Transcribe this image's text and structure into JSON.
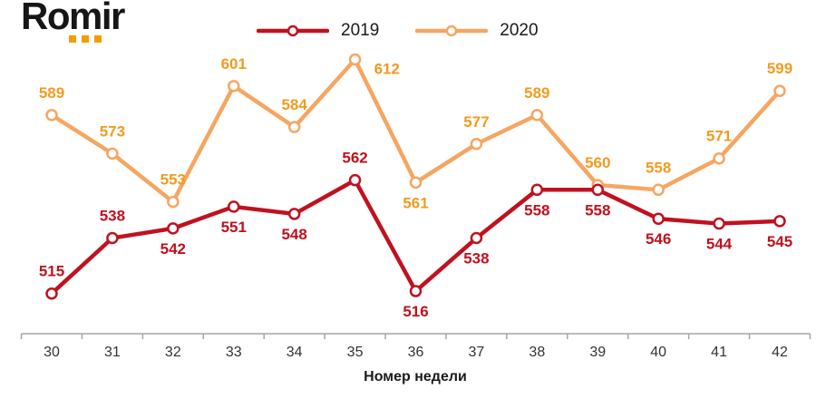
{
  "brand": {
    "logo_text": "Romir",
    "logo_dot_color": "#F59C00",
    "logo_dot_count": 3
  },
  "legend": {
    "items": [
      "2019",
      "2020"
    ]
  },
  "axis": {
    "line_color": "#A6A6A6",
    "tick_label_color": "#333333"
  },
  "chart_data": {
    "type": "line",
    "title": "",
    "categories": [
      "30",
      "31",
      "32",
      "33",
      "34",
      "35",
      "36",
      "37",
      "38",
      "39",
      "40",
      "41",
      "42"
    ],
    "xlabel": "Номер недели",
    "ylabel": "",
    "ylim": [
      507,
      616
    ],
    "grid": false,
    "legend_position": "top-center",
    "marker": "open-circle",
    "series": [
      {
        "name": "2019",
        "color": "#C0111F",
        "label_color": "#C0111F",
        "values": [
          515,
          538,
          542,
          551,
          548,
          562,
          516,
          538,
          558,
          558,
          546,
          544,
          545
        ],
        "label_side": [
          "above",
          "above",
          "below",
          "below",
          "below",
          "above",
          "below",
          "below",
          "below",
          "below",
          "below",
          "below",
          "below"
        ]
      },
      {
        "name": "2020",
        "color": "#F5A661",
        "label_color": "#F29B1E",
        "values": [
          589,
          573,
          553,
          601,
          584,
          612,
          561,
          577,
          589,
          560,
          558,
          571,
          599
        ],
        "label_side": [
          "above",
          "above",
          "above",
          "above",
          "above",
          "right",
          "below",
          "above",
          "above",
          "above",
          "above",
          "above",
          "above"
        ]
      }
    ]
  }
}
